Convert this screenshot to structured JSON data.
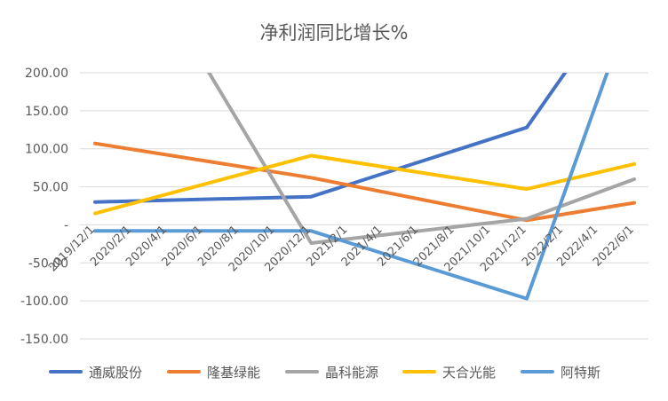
{
  "chart_data": {
    "type": "line",
    "title": "净利润同比增长%",
    "xlabel": "",
    "ylabel": "",
    "ylim": [
      -150,
      200
    ],
    "y_ticks": [
      {
        "value": 200,
        "label": "200.00"
      },
      {
        "value": 150,
        "label": "150.00"
      },
      {
        "value": 100,
        "label": "100.00"
      },
      {
        "value": 50,
        "label": "50.00"
      },
      {
        "value": 0,
        "label": "-"
      },
      {
        "value": -50,
        "label": "-50.00"
      },
      {
        "value": -100,
        "label": "-100.00"
      },
      {
        "value": -150,
        "label": "-150.00"
      }
    ],
    "x_ticks": [
      "2019/12/1",
      "2020/2/1",
      "2020/4/1",
      "2020/6/1",
      "2020/8/1",
      "2020/10/1",
      "2020/12/1",
      "2021/2/1",
      "2021/4/1",
      "2021/6/1",
      "2021/8/1",
      "2021/10/1",
      "2021/12/1",
      "2022/2/1",
      "2022/4/1",
      "2022/6/1"
    ],
    "grid": true,
    "legend_position": "bottom",
    "series": [
      {
        "name": "通威股份",
        "color": "#4472C4",
        "points": [
          [
            "2019/12/1",
            30
          ],
          [
            "2020/12/1",
            37
          ],
          [
            "2021/12/1",
            128
          ],
          [
            "2022/6/1",
            330
          ]
        ]
      },
      {
        "name": "隆基绿能",
        "color": "#ED7D31",
        "points": [
          [
            "2019/12/1",
            107
          ],
          [
            "2020/12/1",
            62
          ],
          [
            "2021/12/1",
            6
          ],
          [
            "2022/6/1",
            29
          ]
        ]
      },
      {
        "name": "晶科能源",
        "color": "#A5A5A5",
        "points": [
          [
            "2019/12/1",
            450
          ],
          [
            "2020/12/1",
            -24
          ],
          [
            "2021/12/1",
            8
          ],
          [
            "2022/6/1",
            60
          ]
        ]
      },
      {
        "name": "天合光能",
        "color": "#FFC000",
        "points": [
          [
            "2019/12/1",
            15
          ],
          [
            "2020/12/1",
            91
          ],
          [
            "2021/12/1",
            47
          ],
          [
            "2022/6/1",
            80
          ]
        ]
      },
      {
        "name": "阿特斯",
        "color": "#5B9BD5",
        "points": [
          [
            "2019/12/1",
            -8
          ],
          [
            "2020/12/1",
            -8
          ],
          [
            "2021/12/1",
            -97
          ],
          [
            "2022/6/1",
            300
          ]
        ]
      }
    ]
  }
}
